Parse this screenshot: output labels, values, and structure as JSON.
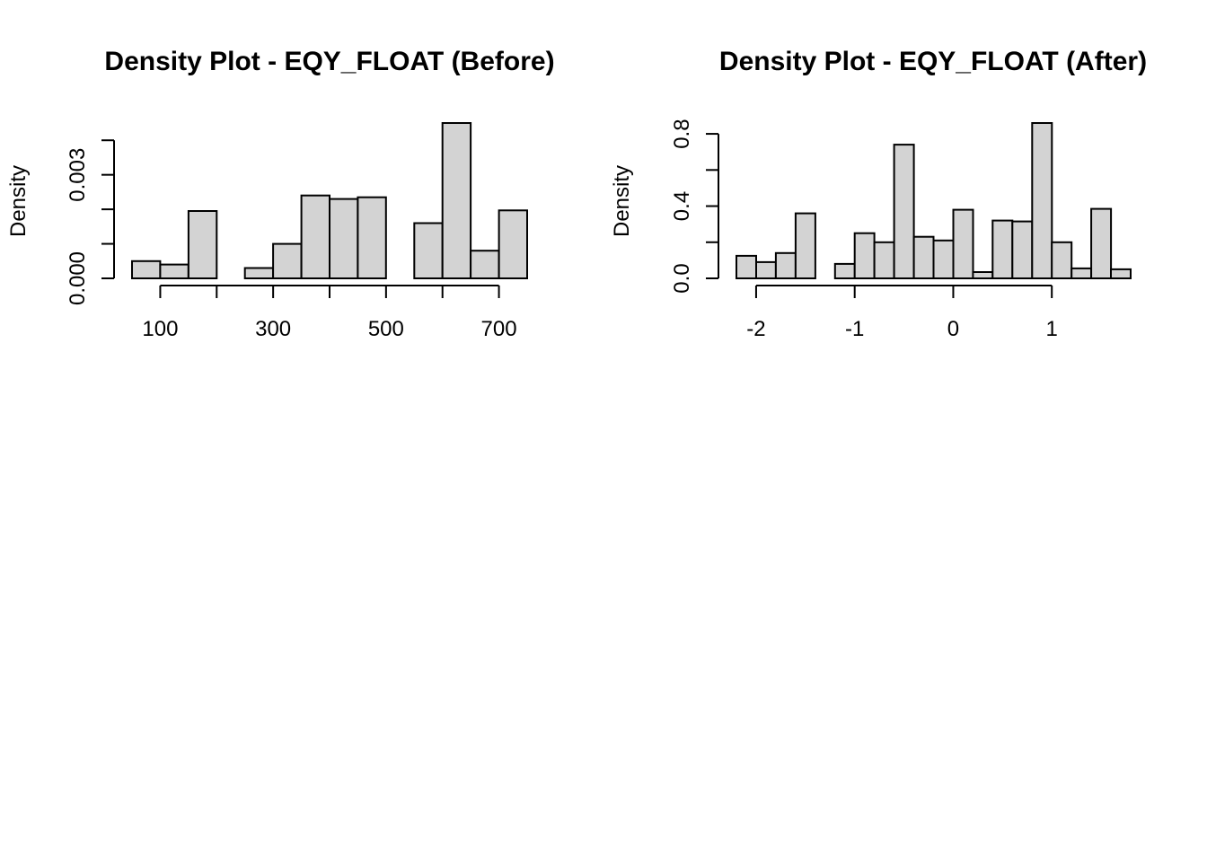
{
  "chart_data": [
    {
      "type": "bar",
      "subtype": "histogram",
      "title": "Density Plot -  EQY_FLOAT (Before)",
      "xlabel": "",
      "ylabel": "Density",
      "bar_color": "#d3d3d3",
      "border_color": "#000000",
      "bins": [
        {
          "x0": 50,
          "x1": 100,
          "density": 0.0005
        },
        {
          "x0": 100,
          "x1": 150,
          "density": 0.0004
        },
        {
          "x0": 150,
          "x1": 200,
          "density": 0.00195
        },
        {
          "x0": 200,
          "x1": 250,
          "density": 0.0
        },
        {
          "x0": 250,
          "x1": 300,
          "density": 0.0003
        },
        {
          "x0": 300,
          "x1": 350,
          "density": 0.001
        },
        {
          "x0": 350,
          "x1": 400,
          "density": 0.0024
        },
        {
          "x0": 400,
          "x1": 450,
          "density": 0.0023
        },
        {
          "x0": 450,
          "x1": 500,
          "density": 0.00235
        },
        {
          "x0": 500,
          "x1": 550,
          "density": 0.0
        },
        {
          "x0": 550,
          "x1": 600,
          "density": 0.0016
        },
        {
          "x0": 600,
          "x1": 650,
          "density": 0.0045
        },
        {
          "x0": 650,
          "x1": 700,
          "density": 0.0008
        },
        {
          "x0": 700,
          "x1": 750,
          "density": 0.00197
        }
      ],
      "xlim": [
        50,
        750
      ],
      "ylim": [
        0,
        0.0045
      ],
      "x_axis_range": [
        100,
        700
      ],
      "x_ticks": [
        100,
        200,
        300,
        400,
        500,
        600,
        700
      ],
      "x_tick_labels": [
        {
          "value": 100,
          "label": "100"
        },
        {
          "value": 300,
          "label": "300"
        },
        {
          "value": 500,
          "label": "500"
        },
        {
          "value": 700,
          "label": "700"
        }
      ],
      "y_axis_range": [
        0,
        0.004
      ],
      "y_ticks": [
        0,
        0.001,
        0.002,
        0.003,
        0.004
      ],
      "y_tick_labels": [
        {
          "value": 0,
          "label": "0.000"
        },
        {
          "value": 0.003,
          "label": "0.003"
        }
      ],
      "grid": false
    },
    {
      "type": "bar",
      "subtype": "histogram",
      "title": "Density Plot -  EQY_FLOAT (After)",
      "xlabel": "",
      "ylabel": "Density",
      "bar_color": "#d3d3d3",
      "border_color": "#000000",
      "bins": [
        {
          "x0": -2.2,
          "x1": -2.0,
          "density": 0.125
        },
        {
          "x0": -2.0,
          "x1": -1.8,
          "density": 0.09
        },
        {
          "x0": -1.8,
          "x1": -1.6,
          "density": 0.14
        },
        {
          "x0": -1.6,
          "x1": -1.4,
          "density": 0.36
        },
        {
          "x0": -1.4,
          "x1": -1.2,
          "density": 0.0
        },
        {
          "x0": -1.2,
          "x1": -1.0,
          "density": 0.08
        },
        {
          "x0": -1.0,
          "x1": -0.8,
          "density": 0.25
        },
        {
          "x0": -0.8,
          "x1": -0.6,
          "density": 0.2
        },
        {
          "x0": -0.6,
          "x1": -0.4,
          "density": 0.74
        },
        {
          "x0": -0.4,
          "x1": -0.2,
          "density": 0.23
        },
        {
          "x0": -0.2,
          "x1": 0.0,
          "density": 0.21
        },
        {
          "x0": 0.0,
          "x1": 0.2,
          "density": 0.38
        },
        {
          "x0": 0.2,
          "x1": 0.4,
          "density": 0.035
        },
        {
          "x0": 0.4,
          "x1": 0.6,
          "density": 0.32
        },
        {
          "x0": 0.6,
          "x1": 0.8,
          "density": 0.315
        },
        {
          "x0": 0.8,
          "x1": 1.0,
          "density": 0.86
        },
        {
          "x0": 1.0,
          "x1": 1.2,
          "density": 0.2
        },
        {
          "x0": 1.2,
          "x1": 1.4,
          "density": 0.055
        },
        {
          "x0": 1.4,
          "x1": 1.6,
          "density": 0.385
        },
        {
          "x0": 1.6,
          "x1": 1.8,
          "density": 0.05
        }
      ],
      "xlim": [
        -2.2,
        1.8
      ],
      "ylim": [
        0,
        0.86
      ],
      "x_axis_range": [
        -2,
        1
      ],
      "x_ticks": [
        -2,
        -1,
        0,
        1
      ],
      "x_tick_labels": [
        {
          "value": -2,
          "label": "-2"
        },
        {
          "value": -1,
          "label": "-1"
        },
        {
          "value": 0,
          "label": "0"
        },
        {
          "value": 1,
          "label": "1"
        }
      ],
      "y_axis_range": [
        0,
        0.8
      ],
      "y_ticks": [
        0,
        0.2,
        0.4,
        0.6,
        0.8
      ],
      "y_tick_labels": [
        {
          "value": 0,
          "label": "0.0"
        },
        {
          "value": 0.4,
          "label": "0.4"
        },
        {
          "value": 0.8,
          "label": "0.8"
        }
      ],
      "grid": false
    }
  ]
}
